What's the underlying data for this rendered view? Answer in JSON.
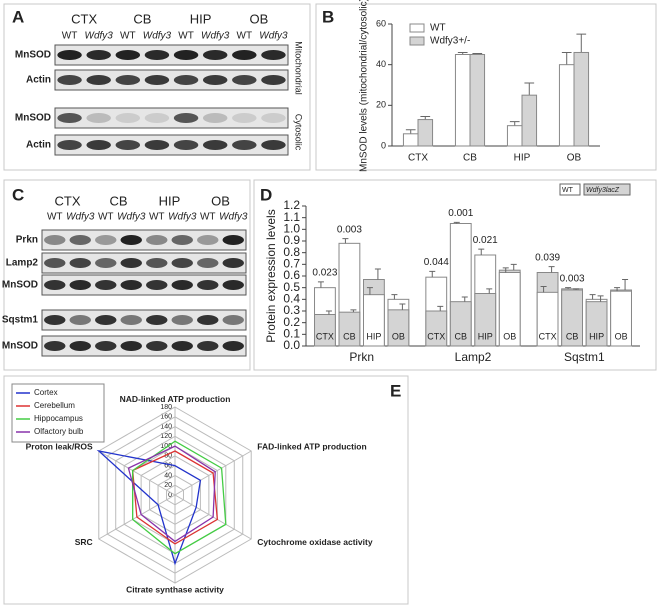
{
  "panel_labels": [
    "A",
    "B",
    "C",
    "D",
    "E"
  ],
  "blots": [
    {
      "groups": [
        "CTX",
        "CB",
        "HIP",
        "OB"
      ],
      "lanes": [
        "WT",
        "Wdfy3",
        "WT",
        "Wdfy3",
        "WT",
        "Wdfy3",
        "WT",
        "Wdfy3"
      ],
      "rows": [
        "MnSOD",
        "Actin",
        "MnSOD",
        "Actin"
      ],
      "fractions": [
        "Mitochondrial",
        "Cytosolic"
      ]
    },
    {
      "groups": [
        "CTX",
        "CB",
        "HIP",
        "OB"
      ],
      "lanes": [
        "WT",
        "Wdfy3",
        "WT",
        "Wdfy3",
        "WT",
        "Wdfy3",
        "WT",
        "Wdfy3"
      ],
      "rows": [
        "Prkn",
        "Lamp2",
        "MnSOD",
        "Sqstm1",
        "MnSOD"
      ]
    }
  ],
  "chart_data": [
    {
      "type": "bar",
      "ylabel": "MnSOD levels (mitochondrial/cytosolic)",
      "categories": [
        "CTX",
        "CB",
        "HIP",
        "OB"
      ],
      "series": [
        {
          "name": "WT",
          "color": "#ffffff",
          "values": [
            6,
            45,
            10,
            40
          ],
          "errors": [
            2,
            1,
            2,
            6
          ]
        },
        {
          "name": "Wdfy3+/-",
          "color": "#d4d4d4",
          "values": [
            13,
            45,
            25,
            46
          ],
          "errors": [
            1.5,
            0.5,
            6,
            9
          ]
        }
      ],
      "ylim": [
        0,
        60
      ],
      "yticks": [
        0,
        20,
        40,
        60
      ],
      "legend": "upper left"
    },
    {
      "type": "overlap_bar",
      "ylabel": "Protein expression levels",
      "groups": [
        "Prkn",
        "Lamp2",
        "Sqstm1"
      ],
      "categories": [
        "CTX",
        "CB",
        "HIP",
        "OB",
        "CTX",
        "CB",
        "HIP",
        "OB",
        "CTX",
        "CB",
        "HIP",
        "OB"
      ],
      "series": [
        {
          "name": "WT",
          "color": "#ffffff",
          "values": [
            0.5,
            0.88,
            0.44,
            0.4,
            0.59,
            1.05,
            0.78,
            0.63,
            0.46,
            0.49,
            0.4,
            0.47
          ],
          "errors": [
            0.05,
            0.04,
            0.06,
            0.04,
            0.05,
            0.01,
            0.05,
            0.04,
            0.05,
            0.01,
            0.04,
            0.03
          ]
        },
        {
          "name": "Wdfy3lacZ",
          "color": "#d4d4d4",
          "values": [
            0.27,
            0.29,
            0.57,
            0.31,
            0.3,
            0.38,
            0.45,
            0.65,
            0.63,
            0.48,
            0.38,
            0.48
          ],
          "errors": [
            0.03,
            0.02,
            0.09,
            0.05,
            0.04,
            0.04,
            0.04,
            0.05,
            0.05,
            0.01,
            0.05,
            0.09
          ]
        }
      ],
      "ylim": [
        0,
        1.2
      ],
      "yticks": [
        {
          "value": 0,
          "label": "0.0"
        },
        0.1,
        0.2,
        0.3,
        0.4,
        0.5,
        0.6,
        0.7,
        0.8,
        0.9,
        {
          "value": 1,
          "label": "1.0"
        },
        1.1,
        1.2
      ],
      "annotations": [
        {
          "category": 0,
          "label": "0.023"
        },
        {
          "category": 1,
          "label": "0.003"
        },
        {
          "category": 4,
          "label": "0.044"
        },
        {
          "category": 5,
          "label": "0.001"
        },
        {
          "category": 6,
          "label": "0.021"
        },
        {
          "category": 8,
          "label": "0.039"
        },
        {
          "category": 9,
          "label": "0.003"
        }
      ],
      "legend": "upper right"
    },
    {
      "type": "radar",
      "axes": [
        "NAD-linked ATP production",
        "FAD-linked ATP production",
        "Cytochrome oxidase activity",
        "Citrate synthase activity",
        "SRC",
        "Proton leak/ROS"
      ],
      "series": [
        {
          "name": "Cortex",
          "color": "#2233cc",
          "values": [
            60,
            60,
            50,
            140,
            40,
            180
          ]
        },
        {
          "name": "Cerebellum",
          "color": "#dd3333",
          "values": [
            90,
            90,
            100,
            100,
            90,
            100
          ]
        },
        {
          "name": "Hippocampus",
          "color": "#44cc44",
          "values": [
            110,
            110,
            120,
            120,
            100,
            100
          ]
        },
        {
          "name": "Olfactory bulb",
          "color": "#8833aa",
          "values": [
            100,
            95,
            90,
            95,
            80,
            110
          ]
        }
      ],
      "rlim": [
        0,
        180
      ],
      "rticks": [
        0,
        20,
        40,
        60,
        80,
        100,
        120,
        140,
        160,
        180
      ],
      "legend": "upper left"
    }
  ]
}
